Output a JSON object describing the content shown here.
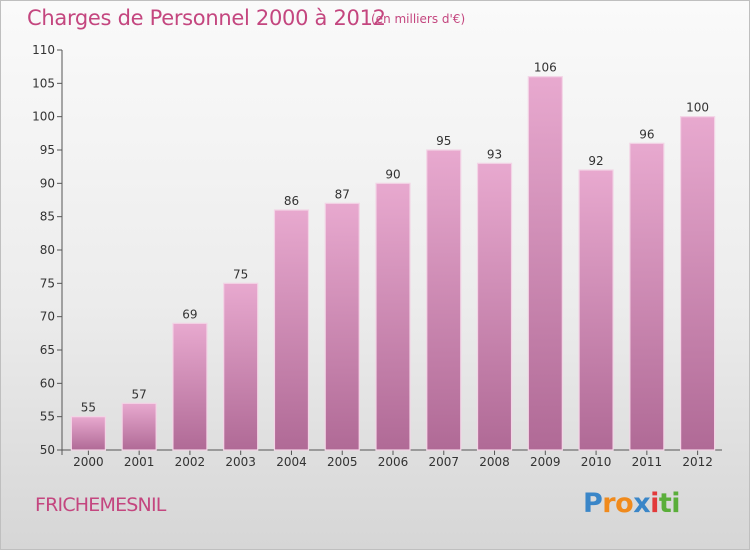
{
  "header": {
    "title": "Charges de Personnel 2000 à 2012",
    "unit": "(en milliers d'€)"
  },
  "footer": {
    "commune": "FRICHEMESNIL",
    "logo_letters": [
      "P",
      "r",
      "o",
      "x",
      "i",
      "t",
      "i"
    ],
    "logo_colors": [
      "#3a86c8",
      "#f08a1c",
      "#f08a1c",
      "#3a86c8",
      "#e23a3a",
      "#5aae3a",
      "#5aae3a"
    ]
  },
  "colors": {
    "bar_top": "#e8a9cf",
    "bar_bottom": "#b06a96",
    "accent": "#c4467f"
  },
  "chart_data": {
    "type": "bar",
    "title": "Charges de Personnel 2000 à 2012",
    "subtitle": "(en milliers d'€)",
    "xlabel": "",
    "ylabel": "",
    "categories": [
      "2000",
      "2001",
      "2002",
      "2003",
      "2004",
      "2005",
      "2006",
      "2007",
      "2008",
      "2009",
      "2010",
      "2011",
      "2012"
    ],
    "values": [
      55,
      57,
      69,
      75,
      86,
      87,
      90,
      95,
      93,
      106,
      92,
      96,
      100
    ],
    "ylim": [
      50,
      110
    ],
    "yticks": [
      50,
      55,
      60,
      65,
      70,
      75,
      80,
      85,
      90,
      95,
      100,
      105,
      110
    ],
    "grid": false,
    "legend": "none"
  }
}
